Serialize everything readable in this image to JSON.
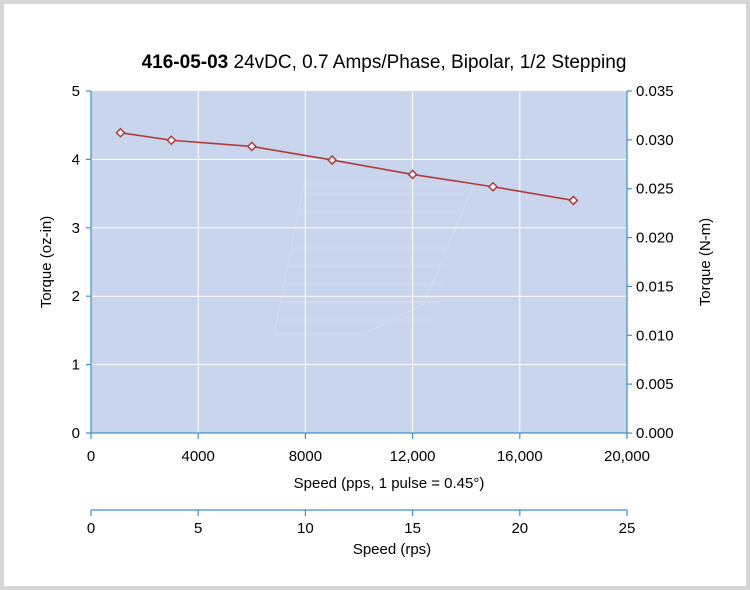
{
  "chart_data": {
    "type": "line",
    "title_bold": "416-05-03",
    "title_rest": " 24vDC, 0.7 Amps/Phase, Bipolar, 1/2 Stepping",
    "xlabel": "Speed (pps, 1 pulse = 0.45°)",
    "ylabel_left": "Torque (oz-in)",
    "ylabel_right": "Torque (N-m)",
    "x2label": "Speed (rps)",
    "xlim": [
      0,
      20000
    ],
    "ylim": [
      0,
      5
    ],
    "y2lim": [
      0,
      0.035
    ],
    "x2lim": [
      0,
      25
    ],
    "xticks": [
      "0",
      "4000",
      "8000",
      "12,000",
      "16,000",
      "20,000"
    ],
    "xtick_values": [
      0,
      4000,
      8000,
      12000,
      16000,
      20000
    ],
    "yticks": [
      "0",
      "1",
      "2",
      "3",
      "4",
      "5"
    ],
    "ytick_values": [
      0,
      1,
      2,
      3,
      4,
      5
    ],
    "y2ticks": [
      "0.000",
      "0.005",
      "0.010",
      "0.015",
      "0.020",
      "0.025",
      "0.030",
      "0.035"
    ],
    "y2tick_values": [
      0,
      0.005,
      0.01,
      0.015,
      0.02,
      0.025,
      0.03,
      0.035
    ],
    "x2ticks": [
      "0",
      "5",
      "10",
      "15",
      "20",
      "25"
    ],
    "x2tick_values": [
      0,
      5,
      10,
      15,
      20,
      25
    ],
    "grid": true,
    "series": [
      {
        "x": [
          1100,
          3000,
          6000,
          9000,
          12000,
          15000,
          18000
        ],
        "y": [
          4.39,
          4.28,
          4.19,
          3.99,
          3.78,
          3.6,
          3.4
        ]
      }
    ],
    "colors": {
      "plot_bg": "#c9d4ed",
      "line": "#b03a3a",
      "axis": "#3b8fd0",
      "grid": "#ffffff",
      "frame_bg": "#d6d6d6"
    }
  }
}
